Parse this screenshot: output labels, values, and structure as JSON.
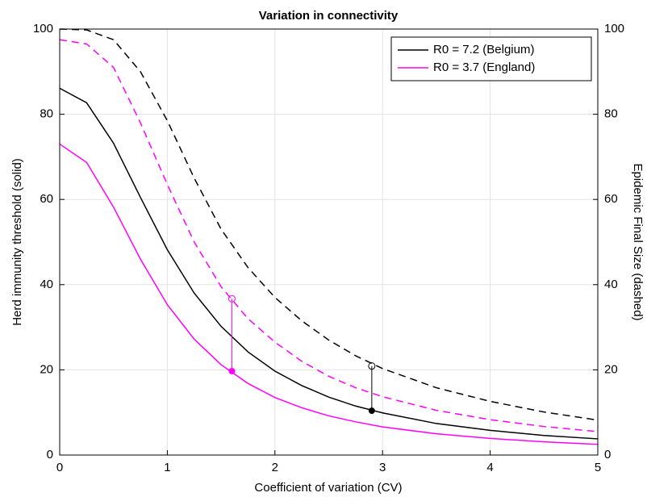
{
  "chart_data": {
    "type": "line",
    "title": "Variation in connectivity",
    "xlabel": "Coefficient of variation (CV)",
    "ylabel": "Herd immunity threshold (solid)",
    "y2label": "Epidemic Final Size (dashed)",
    "x": [
      0,
      0.25,
      0.5,
      0.75,
      1,
      1.25,
      1.5,
      1.75,
      2,
      2.25,
      2.5,
      2.75,
      3,
      3.5,
      4,
      4.5,
      5
    ],
    "series": [
      {
        "name": "R0 = 7.2 (Belgium)",
        "color": "#000000",
        "style": "solid",
        "values": [
          86.1,
          82.7,
          73.2,
          60.5,
          48.2,
          38.0,
          30.2,
          24.2,
          19.7,
          16.3,
          13.6,
          11.5,
          9.9,
          7.4,
          5.8,
          4.6,
          3.8
        ]
      },
      {
        "name": "R0 = 3.7 (England)",
        "color": "#ff00ff",
        "style": "solid",
        "values": [
          73.0,
          68.7,
          58.2,
          46.0,
          35.3,
          27.2,
          21.2,
          16.8,
          13.5,
          11.1,
          9.2,
          7.8,
          6.6,
          5.0,
          3.9,
          3.1,
          2.5
        ]
      },
      {
        "color": "#000000",
        "style": "dashed",
        "axis": "y2",
        "values": [
          100,
          99.8,
          97.5,
          90,
          78.5,
          65,
          53,
          44,
          37,
          31.5,
          27,
          23.3,
          20.3,
          15.8,
          12.6,
          10.1,
          8.2
        ]
      },
      {
        "color": "#ff00ff",
        "style": "dashed",
        "axis": "y2",
        "values": [
          97.5,
          96.5,
          91,
          78,
          63.5,
          50,
          39.5,
          32,
          26.5,
          22,
          18.5,
          15.8,
          13.7,
          10.5,
          8.3,
          6.7,
          5.5
        ]
      }
    ],
    "highlights": [
      {
        "x": 1.6,
        "y": 19.7,
        "y2": 36.7,
        "color": "#ff00ff"
      },
      {
        "x": 2.9,
        "y": 10.4,
        "y2": 20.9,
        "color": "#000000"
      }
    ],
    "xlim": [
      0,
      5
    ],
    "xticks": [
      0,
      1,
      2,
      3,
      4,
      5
    ],
    "ylim": [
      0,
      100
    ],
    "yticks": [
      0,
      20,
      40,
      60,
      80,
      100
    ],
    "y2lim": [
      0,
      100
    ],
    "y2ticks": [
      0,
      20,
      40,
      60,
      80,
      100
    ],
    "grid": true,
    "legend": "upper right"
  }
}
